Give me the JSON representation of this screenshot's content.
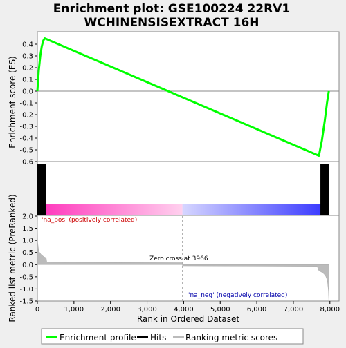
{
  "chart_data": {
    "type": "line",
    "title_lines": [
      "Enrichment plot: GSE100224 22RV1",
      "WCHINENSISEXTRACT 16H"
    ],
    "es_panel": {
      "ylabel": "Enrichment score (ES)",
      "ylim": [
        -0.6,
        0.5
      ],
      "yticks": [
        -0.6,
        -0.5,
        -0.4,
        -0.3,
        -0.2,
        -0.1,
        0.0,
        0.1,
        0.2,
        0.3,
        0.4
      ],
      "ytick_labels": [
        "-0.6",
        "-0.5",
        "-0.4",
        "-0.3",
        "-0.2",
        "-0.1",
        "0.0",
        "0.1",
        "0.2",
        "0.3",
        "0.4"
      ],
      "series": [
        {
          "name": "Enrichment profile",
          "color": "#00ff00",
          "x": [
            0,
            40,
            80,
            120,
            160,
            200,
            7700,
            7780,
            7860,
            7920,
            7970
          ],
          "y": [
            0.0,
            0.18,
            0.3,
            0.38,
            0.43,
            0.45,
            -0.55,
            -0.42,
            -0.25,
            -0.1,
            0.0
          ]
        }
      ]
    },
    "hits_panel": {
      "hit_blocks": [
        {
          "x0": 0,
          "x1": 230
        },
        {
          "x0": 7740,
          "x1": 7970
        }
      ],
      "gradient_split": 3966
    },
    "metric_panel": {
      "ylabel": "Ranked list metric (PreRanked)",
      "xlabel": "Rank in Ordered Dataset",
      "ylim": [
        -1.5,
        2.0
      ],
      "yticks": [
        -1.5,
        -1.0,
        -0.5,
        0.0,
        0.5,
        1.0,
        1.5,
        2.0
      ],
      "ytick_labels": [
        "-1.5",
        "-1.0",
        "-0.5",
        "0.0",
        "0.5",
        "1.0",
        "1.5",
        "2.0"
      ],
      "xlim": [
        0,
        8250
      ],
      "xticks": [
        0,
        1000,
        2000,
        3000,
        4000,
        5000,
        6000,
        7000,
        8000
      ],
      "xtick_labels": [
        "0",
        "1,000",
        "2,000",
        "3,000",
        "4,000",
        "5,000",
        "6,000",
        "7,000",
        "8,000"
      ],
      "profile": {
        "x": [
          0,
          10,
          40,
          100,
          180,
          240,
          260,
          1000,
          3966,
          3970,
          7650,
          7700,
          7800,
          7880,
          7930,
          7960,
          7970
        ],
        "y": [
          1.9,
          0.9,
          0.55,
          0.42,
          0.32,
          0.28,
          0.1,
          0.09,
          0.08,
          -0.05,
          -0.07,
          -0.25,
          -0.33,
          -0.45,
          -0.65,
          -1.1,
          -1.45
        ]
      },
      "pos_label": "'na_pos' (positively correlated)",
      "neg_label": "'na_neg' (negatively correlated)",
      "zero_cross_label": "Zero cross at 3966",
      "zero_cross": 3966
    },
    "legend": {
      "placement": "bottom",
      "items": [
        {
          "label": "Enrichment profile",
          "color": "#00ff00"
        },
        {
          "label": "Hits",
          "color": "#000000"
        },
        {
          "label": "Ranking metric scores",
          "color": "#bbbbbb"
        }
      ]
    }
  }
}
